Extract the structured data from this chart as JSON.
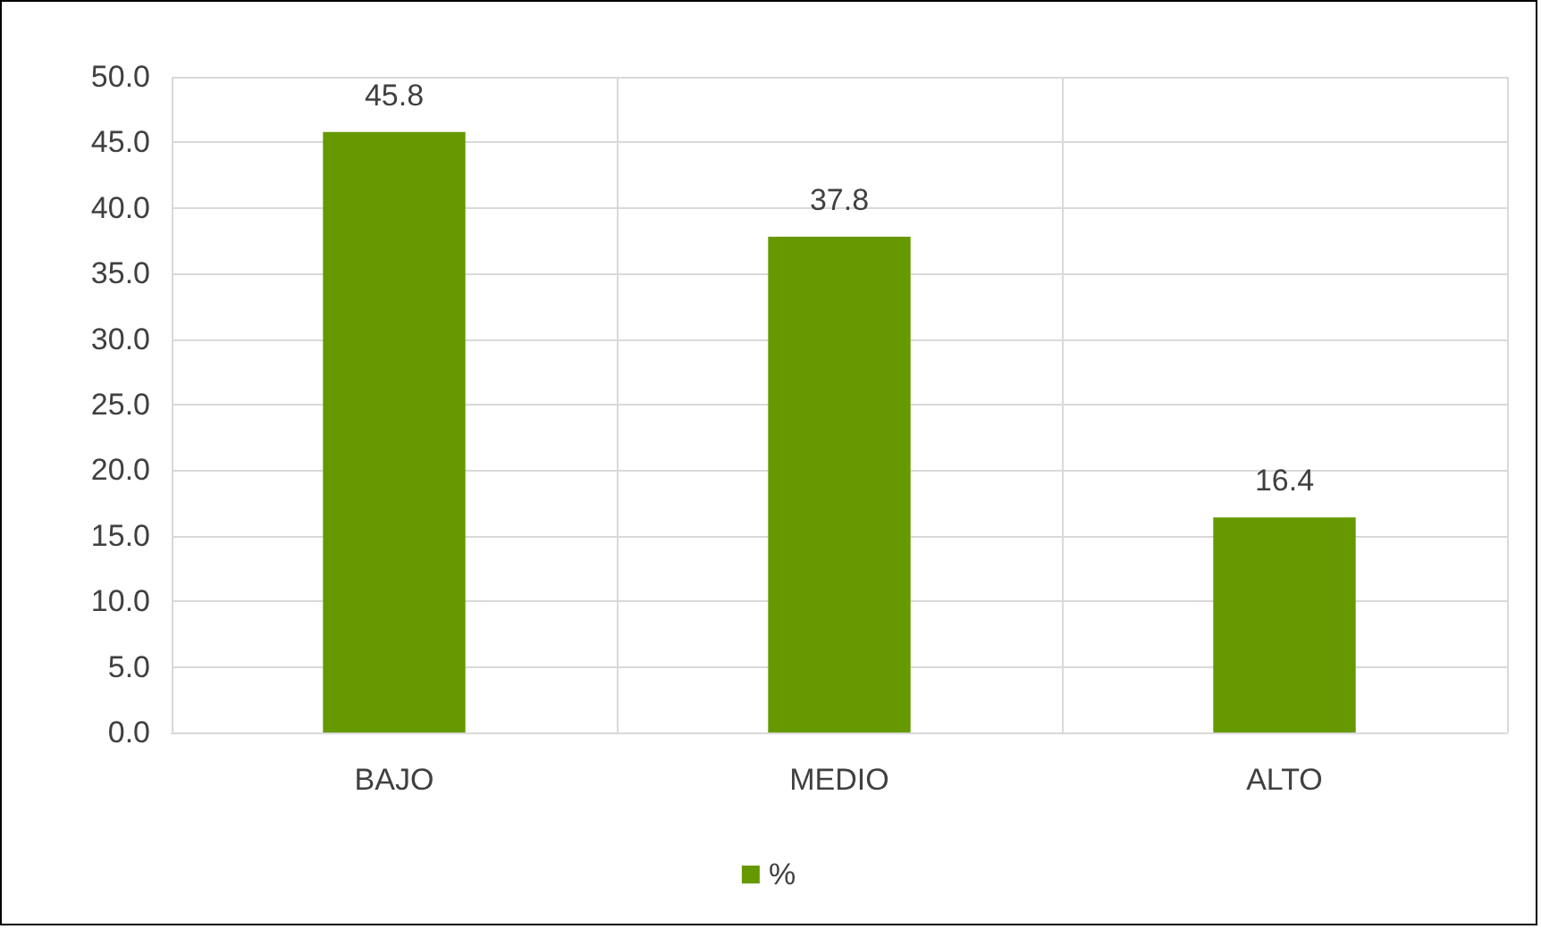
{
  "chart_data": {
    "type": "bar",
    "categories": [
      "BAJO",
      "MEDIO",
      "ALTO"
    ],
    "series": [
      {
        "name": "%",
        "color": "#669900",
        "values": [
          45.8,
          37.8,
          16.4
        ]
      }
    ],
    "ylim": [
      0,
      50
    ],
    "yticks": [
      {
        "value": 0,
        "label": "0.0"
      },
      {
        "value": 5,
        "label": "5.0"
      },
      {
        "value": 10,
        "label": "10.0"
      },
      {
        "value": 15,
        "label": "15.0"
      },
      {
        "value": 20,
        "label": "20.0"
      },
      {
        "value": 25,
        "label": "25.0"
      },
      {
        "value": 30,
        "label": "30.0"
      },
      {
        "value": 35,
        "label": "35.0"
      },
      {
        "value": 40,
        "label": "40.0"
      },
      {
        "value": 45,
        "label": "45.0"
      },
      {
        "value": 50,
        "label": "50.0"
      }
    ],
    "grid": true,
    "legend": "bottom",
    "data_labels": true
  }
}
